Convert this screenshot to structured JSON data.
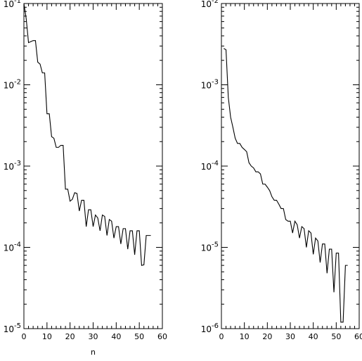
{
  "chart_data": [
    {
      "type": "line",
      "xlabel": "n",
      "ylabel": "",
      "xlim": [
        0,
        60
      ],
      "ylim": [
        1e-05,
        0.1
      ],
      "yscale": "log",
      "xticks": [
        0,
        10,
        20,
        30,
        40,
        50,
        60
      ],
      "x_tick_labels": [
        "0",
        "10",
        "20",
        "30",
        "40",
        "50",
        "60"
      ],
      "y_tick_labels": [
        {
          "base": "10",
          "exp": "-5",
          "value": 1e-05
        },
        {
          "base": "10",
          "exp": "-4",
          "value": 0.0001
        },
        {
          "base": "10",
          "exp": "-3",
          "value": 0.001
        },
        {
          "base": "10",
          "exp": "-2",
          "value": 0.01
        },
        {
          "base": "10",
          "exp": "-1",
          "value": 0.1
        }
      ],
      "grid": false,
      "series": [
        {
          "x": [
            0,
            1,
            2,
            3,
            4,
            5,
            6,
            7,
            8,
            9,
            10,
            11,
            12,
            13,
            14,
            15,
            16,
            17,
            18,
            19,
            20,
            21,
            22,
            23,
            24,
            25,
            26,
            27,
            28,
            29,
            30,
            31,
            32,
            33,
            34,
            35,
            36,
            37,
            38,
            39,
            40,
            41,
            42,
            43,
            44,
            45,
            46,
            47,
            48,
            49,
            50,
            51,
            52,
            53,
            54,
            55
          ],
          "y": [
            0.1,
            0.065,
            0.033,
            0.034,
            0.035,
            0.035,
            0.019,
            0.018,
            0.014,
            0.014,
            0.0044,
            0.0044,
            0.0023,
            0.0022,
            0.0017,
            0.0017,
            0.0018,
            0.0018,
            0.00052,
            0.00052,
            0.00037,
            0.00039,
            0.00047,
            0.00046,
            0.00028,
            0.00038,
            0.00038,
            0.00018,
            0.00029,
            0.00029,
            0.00018,
            0.00025,
            0.00023,
            0.00016,
            0.00025,
            0.00024,
            0.00014,
            0.00022,
            0.00021,
            0.00013,
            0.00018,
            0.00018,
            0.00011,
            0.00017,
            0.00017,
            9.5e-05,
            0.00016,
            0.00016,
            8.1e-05,
            0.00016,
            0.00016,
            6e-05,
            6.1e-05,
            0.00014,
            0.00014,
            0.00014
          ]
        }
      ]
    },
    {
      "type": "line",
      "xlabel": "",
      "ylabel": "",
      "xlim": [
        0,
        60
      ],
      "ylim": [
        1e-06,
        0.01
      ],
      "yscale": "log",
      "xticks": [
        0,
        10,
        20,
        30,
        40,
        50,
        60
      ],
      "x_tick_labels": [
        "0",
        "10",
        "20",
        "30",
        "40",
        "50",
        "60"
      ],
      "y_tick_labels": [
        {
          "base": "10",
          "exp": "-6",
          "value": 1e-06
        },
        {
          "base": "10",
          "exp": "-5",
          "value": 1e-05
        },
        {
          "base": "10",
          "exp": "-4",
          "value": 0.0001
        },
        {
          "base": "10",
          "exp": "-3",
          "value": 0.001
        },
        {
          "base": "10",
          "exp": "-2",
          "value": 0.01
        }
      ],
      "grid": false,
      "series": [
        {
          "x": [
            1,
            2,
            3,
            4,
            5,
            6,
            7,
            8,
            9,
            10,
            11,
            12,
            13,
            14,
            15,
            16,
            17,
            18,
            19,
            20,
            21,
            22,
            23,
            24,
            25,
            26,
            27,
            28,
            29,
            30,
            31,
            32,
            33,
            34,
            35,
            36,
            37,
            38,
            39,
            40,
            41,
            42,
            43,
            44,
            45,
            46,
            47,
            48,
            49,
            50,
            51,
            52,
            53,
            54,
            55
          ],
          "y": [
            0.0028,
            0.0027,
            0.0007,
            0.0004,
            0.0003,
            0.00022,
            0.00019,
            0.00019,
            0.00017,
            0.00016,
            0.00015,
            0.00011,
            0.0001,
            9.5e-05,
            8.5e-05,
            8.5e-05,
            8e-05,
            6e-05,
            6e-05,
            5.5e-05,
            5e-05,
            4.2e-05,
            3.8e-05,
            3.8e-05,
            3.4e-05,
            3e-05,
            3e-05,
            2.2e-05,
            2.1e-05,
            2.1e-05,
            1.5e-05,
            2.1e-05,
            1.9e-05,
            1.3e-05,
            1.8e-05,
            1.7e-05,
            1e-05,
            1.6e-05,
            1.5e-05,
            8.2e-06,
            1.3e-05,
            1.2e-05,
            6.5e-06,
            1.1e-05,
            1.1e-05,
            4.8e-06,
            9.5e-06,
            9.5e-06,
            2.8e-06,
            8.5e-06,
            8.5e-06,
            1.2e-06,
            1.2e-06,
            6e-06,
            6e-06
          ]
        }
      ]
    }
  ]
}
